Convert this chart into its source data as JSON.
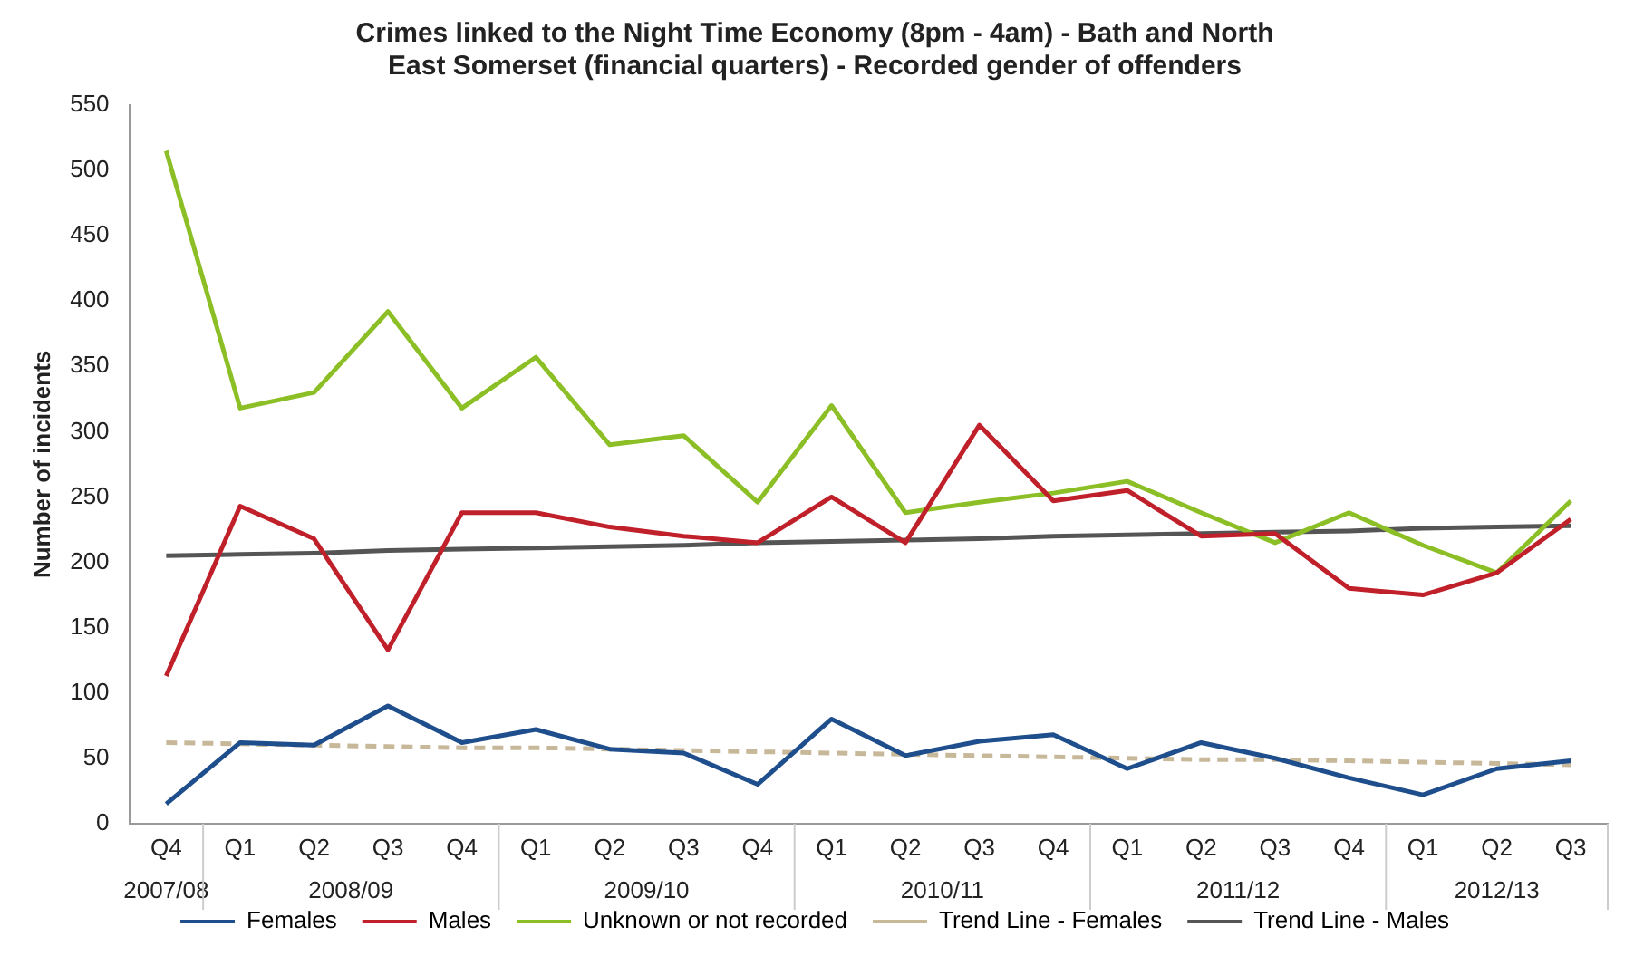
{
  "chart_data": {
    "type": "line",
    "title": "Crimes linked to the Night Time Economy (8pm - 4am) - Bath and North East Somerset (financial quarters) - Recorded gender of offenders",
    "ylabel": "Number of incidents",
    "categories": [
      "Q4",
      "Q1",
      "Q2",
      "Q3",
      "Q4",
      "Q1",
      "Q2",
      "Q3",
      "Q4",
      "Q1",
      "Q2",
      "Q3",
      "Q4",
      "Q1",
      "Q2",
      "Q3",
      "Q4",
      "Q1",
      "Q2",
      "Q3"
    ],
    "annotations": [
      "2007/08",
      "2008/09",
      "2009/10",
      "2010/11",
      "2011/12",
      "2012/13"
    ],
    "series": [
      {
        "name": "Females",
        "color": "#1f4e8c",
        "values": [
          15,
          62,
          60,
          90,
          62,
          72,
          57,
          54,
          30,
          80,
          52,
          63,
          68,
          42,
          62,
          50,
          35,
          22,
          42,
          48
        ]
      },
      {
        "name": "Males",
        "color": "#c0202a",
        "values": [
          113,
          243,
          218,
          133,
          238,
          238,
          227,
          220,
          215,
          250,
          215,
          305,
          247,
          255,
          220,
          222,
          180,
          175,
          192,
          233
        ]
      },
      {
        "name": "Unknown or not recorded",
        "color": "#8cbf26",
        "values": [
          515,
          318,
          330,
          392,
          318,
          357,
          290,
          297,
          246,
          320,
          238,
          246,
          253,
          262,
          238,
          215,
          238,
          213,
          192,
          247
        ]
      },
      {
        "name": "Trend Line - Females",
        "color": "#c8b89a",
        "line_style": "dashed",
        "values": [
          62,
          61,
          60,
          59,
          58,
          58,
          57,
          56,
          55,
          54,
          53,
          52,
          51,
          50,
          49,
          49,
          48,
          47,
          46,
          45
        ]
      },
      {
        "name": "Trend Line - Males",
        "color": "#555555",
        "values": [
          205,
          206,
          207,
          209,
          210,
          211,
          212,
          213,
          215,
          216,
          217,
          218,
          220,
          221,
          222,
          223,
          224,
          226,
          227,
          228
        ]
      }
    ],
    "ylim": [
      0,
      550
    ],
    "yticks": [
      0,
      50,
      100,
      150,
      200,
      250,
      300,
      350,
      400,
      450,
      500,
      550
    ],
    "grid": false,
    "legend": "bottom",
    "marker": "none",
    "line_style": "solid"
  }
}
